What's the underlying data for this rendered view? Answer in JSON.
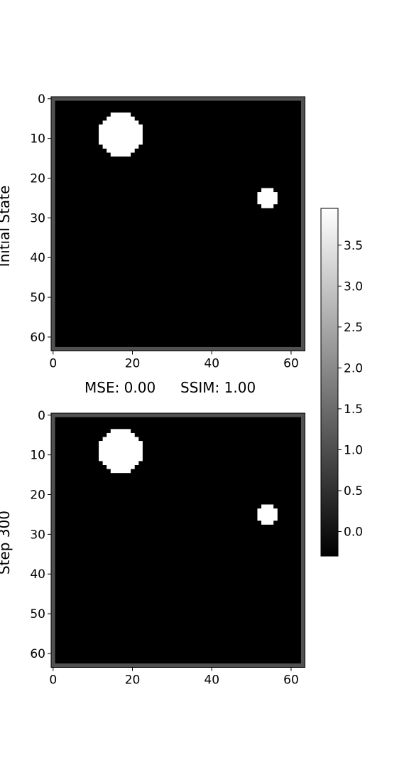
{
  "chart_data": [
    {
      "type": "heatmap",
      "row_label": "Initial State",
      "grid_size": 64,
      "x_ticks": [
        "0",
        "20",
        "40",
        "60"
      ],
      "y_ticks": [
        "0",
        "10",
        "20",
        "30",
        "40",
        "50",
        "60"
      ],
      "background_value": -0.3,
      "border_value": 1.05,
      "blobs": [
        {
          "cx": 17,
          "cy": 9,
          "r": 5.6,
          "value": 3.95
        },
        {
          "cx": 54,
          "cy": 25,
          "r": 2.4,
          "value": 3.95
        }
      ]
    },
    {
      "type": "heatmap",
      "row_label": "Step 300",
      "grid_size": 64,
      "x_ticks": [
        "0",
        "20",
        "40",
        "60"
      ],
      "y_ticks": [
        "0",
        "10",
        "20",
        "30",
        "40",
        "50",
        "60"
      ],
      "background_value": -0.3,
      "border_value": 1.05,
      "blobs": [
        {
          "cx": 17,
          "cy": 9,
          "r": 5.6,
          "value": 3.95
        },
        {
          "cx": 54,
          "cy": 25,
          "r": 2.4,
          "value": 3.95
        }
      ]
    }
  ],
  "metrics": {
    "mse": "MSE: 0.00",
    "ssim": "SSIM: 1.00"
  },
  "colorbar": {
    "colormap": "gray",
    "vmin": -0.3,
    "vmax": 3.95,
    "ticks": [
      "0.0",
      "0.5",
      "1.0",
      "1.5",
      "2.0",
      "2.5",
      "3.0",
      "3.5"
    ]
  }
}
